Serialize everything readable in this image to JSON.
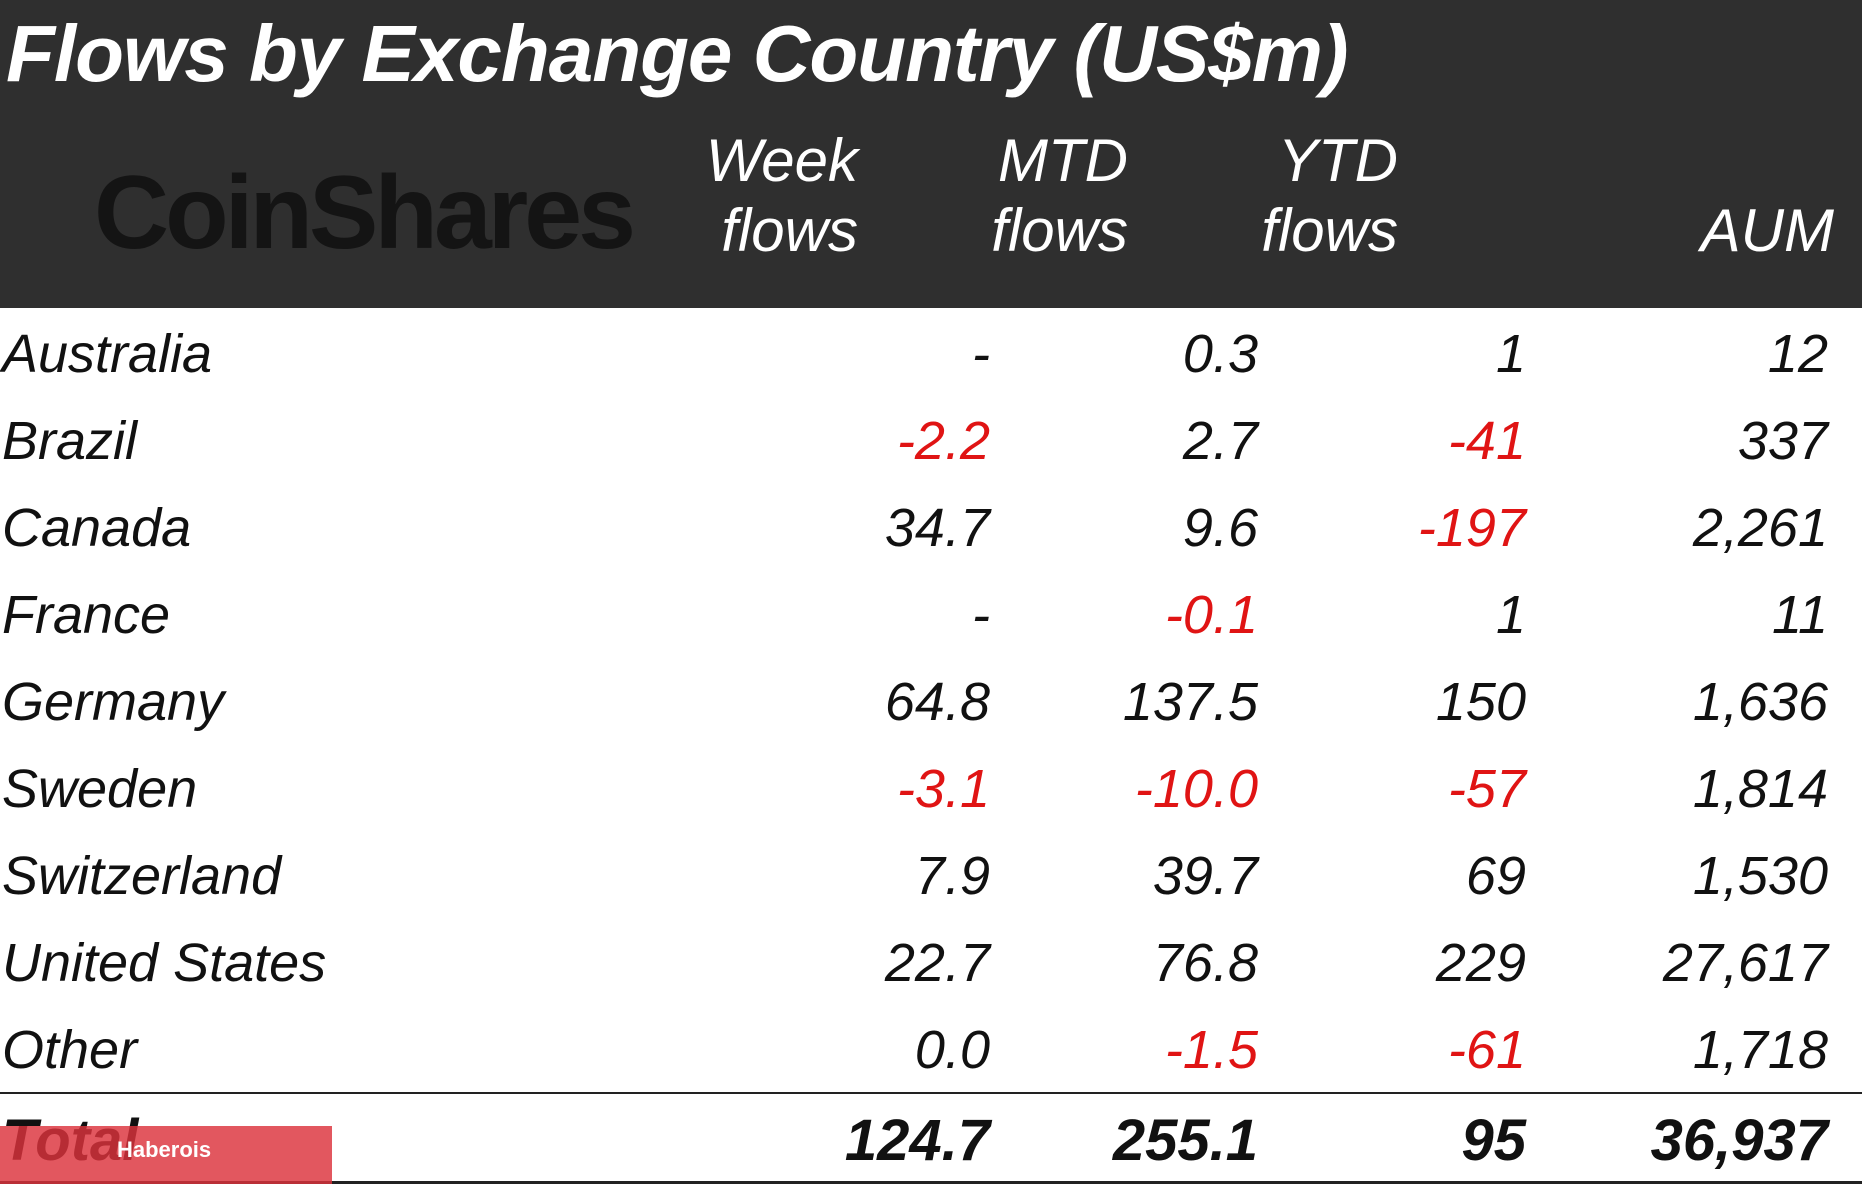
{
  "chart_data": {
    "type": "table",
    "title": "Flows by Exchange Country (US$m)",
    "columns": [
      {
        "line1": "Week",
        "line2": "flows"
      },
      {
        "line1": "MTD",
        "line2": "flows"
      },
      {
        "line1": "YTD",
        "line2": "flows"
      },
      {
        "line1": "",
        "line2": "AUM"
      }
    ],
    "rows": [
      {
        "country": "Australia",
        "week": "-",
        "mtd": "0.3",
        "ytd": "1",
        "aum": "12"
      },
      {
        "country": "Brazil",
        "week": "-2.2",
        "mtd": "2.7",
        "ytd": "-41",
        "aum": "337"
      },
      {
        "country": "Canada",
        "week": "34.7",
        "mtd": "9.6",
        "ytd": "-197",
        "aum": "2,261"
      },
      {
        "country": "France",
        "week": "-",
        "mtd": "-0.1",
        "ytd": "1",
        "aum": "11"
      },
      {
        "country": "Germany",
        "week": "64.8",
        "mtd": "137.5",
        "ytd": "150",
        "aum": "1,636"
      },
      {
        "country": "Sweden",
        "week": "-3.1",
        "mtd": "-10.0",
        "ytd": "-57",
        "aum": "1,814"
      },
      {
        "country": "Switzerland",
        "week": "7.9",
        "mtd": "39.7",
        "ytd": "69",
        "aum": "1,530"
      },
      {
        "country": "United States",
        "week": "22.7",
        "mtd": "76.8",
        "ytd": "229",
        "aum": "27,617"
      },
      {
        "country": "Other",
        "week": "0.0",
        "mtd": "-1.5",
        "ytd": "-61",
        "aum": "1,718"
      }
    ],
    "total": {
      "label": "Total",
      "week": "124.7",
      "mtd": "255.1",
      "ytd": "95",
      "aum": "36,937"
    }
  },
  "logo_text": "CoinShares",
  "watermark_text": "Haberois",
  "colors": {
    "header_bg": "#2f2f2f",
    "negative": "#e01414",
    "watermark": "#dc323c"
  }
}
